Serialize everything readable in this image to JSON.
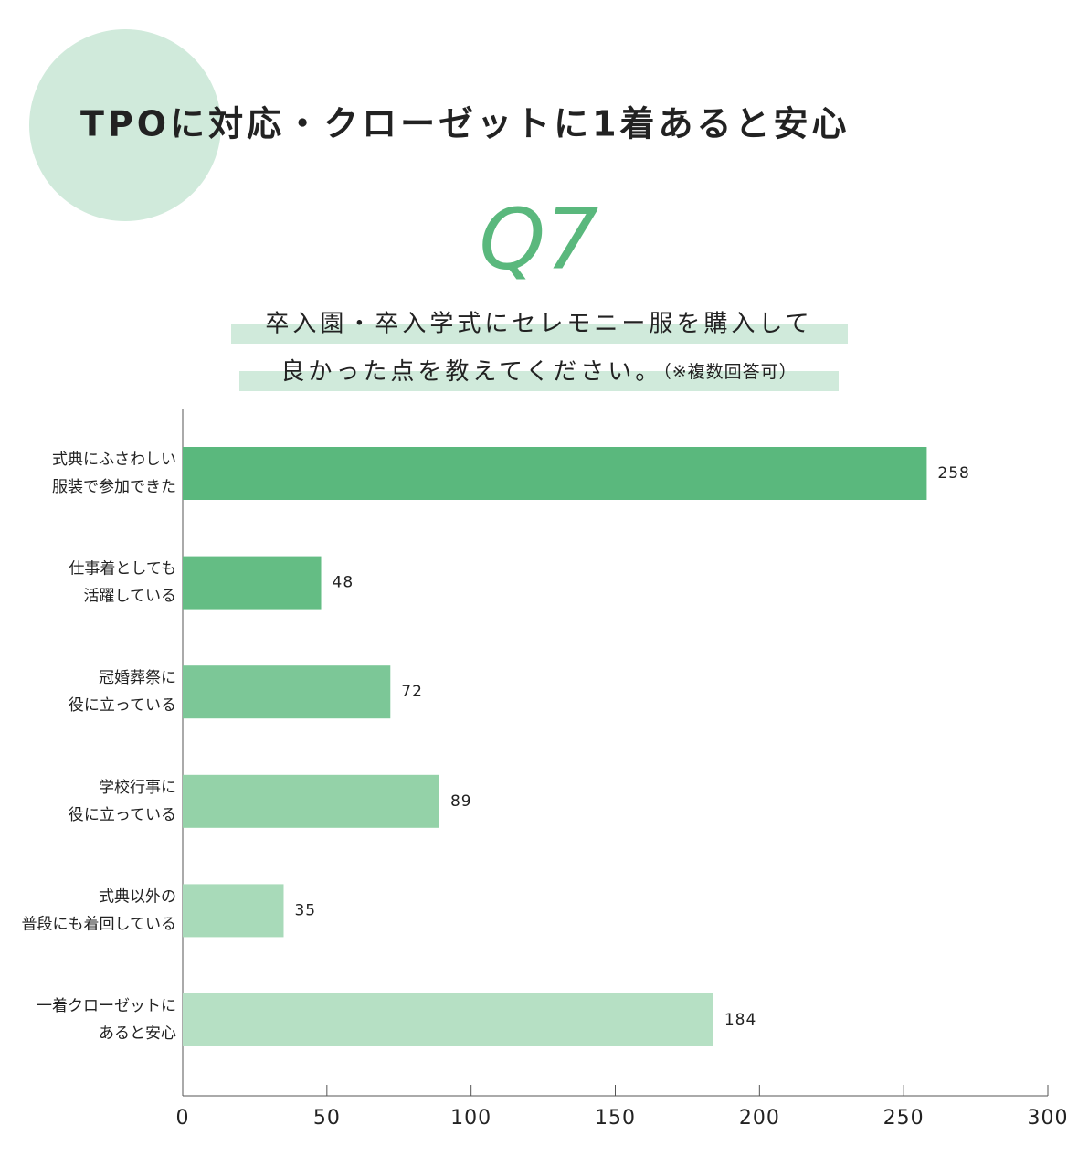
{
  "chart_data": {
    "type": "barh",
    "title": "TPOに対応・クローゼットに1着あると安心",
    "question": "Q7",
    "subtitle": [
      "卒入園・卒入学式にセレモニー服を購入して",
      "良かった点を教えてください。"
    ],
    "note": "（※複数回答可）",
    "categories": [
      [
        "式典にふさわしい",
        "服装で参加できた"
      ],
      [
        "仕事着としても",
        "活躍している"
      ],
      [
        "冠婚葬祭に",
        "役に立っている"
      ],
      [
        "学校行事に",
        "役に立っている"
      ],
      [
        "式典以外の",
        "普段にも着回している"
      ],
      [
        "一着クローゼットに",
        "あると安心"
      ]
    ],
    "values": [
      258,
      48,
      72,
      89,
      35,
      184
    ],
    "colors": [
      "#5ab87d",
      "#64bd84",
      "#7cc797",
      "#94d2a8",
      "#a8dab9",
      "#b6e0c4"
    ],
    "xlim": [
      0,
      300
    ],
    "xticks": [
      0,
      50,
      100,
      150,
      200,
      250,
      300
    ]
  }
}
